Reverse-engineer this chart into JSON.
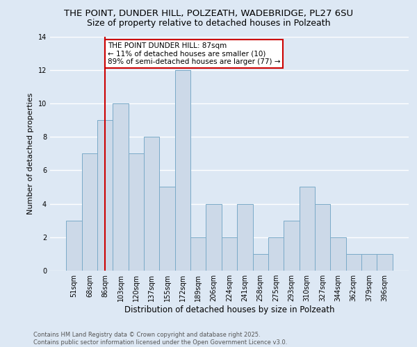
{
  "title1": "THE POINT, DUNDER HILL, POLZEATH, WADEBRIDGE, PL27 6SU",
  "title2": "Size of property relative to detached houses in Polzeath",
  "xlabel": "Distribution of detached houses by size in Polzeath",
  "ylabel": "Number of detached properties",
  "bar_labels": [
    "51sqm",
    "68sqm",
    "86sqm",
    "103sqm",
    "120sqm",
    "137sqm",
    "155sqm",
    "172sqm",
    "189sqm",
    "206sqm",
    "224sqm",
    "241sqm",
    "258sqm",
    "275sqm",
    "293sqm",
    "310sqm",
    "327sqm",
    "344sqm",
    "362sqm",
    "379sqm",
    "396sqm"
  ],
  "bar_values": [
    3,
    7,
    9,
    10,
    7,
    8,
    5,
    12,
    2,
    4,
    2,
    4,
    1,
    2,
    3,
    5,
    4,
    2,
    1,
    1,
    1
  ],
  "bar_color": "#ccd9e8",
  "bar_edge_color": "#7aaac8",
  "background_color": "#dde8f4",
  "grid_color": "#ffffff",
  "annotation_line1": "THE POINT DUNDER HILL: 87sqm",
  "annotation_line2": "← 11% of detached houses are smaller (10)",
  "annotation_line3": "89% of semi-detached houses are larger (77) →",
  "annotation_box_color": "#ffffff",
  "annotation_box_edge": "#cc0000",
  "vline_x_index": 2,
  "vline_color": "#cc0000",
  "ylim": [
    0,
    14
  ],
  "yticks": [
    0,
    2,
    4,
    6,
    8,
    10,
    12,
    14
  ],
  "footer": "Contains HM Land Registry data © Crown copyright and database right 2025.\nContains public sector information licensed under the Open Government Licence v3.0.",
  "title1_fontsize": 9.5,
  "title2_fontsize": 9.0,
  "xlabel_fontsize": 8.5,
  "ylabel_fontsize": 8.0,
  "tick_fontsize": 7.0,
  "annot_fontsize": 7.5,
  "footer_fontsize": 6.0
}
